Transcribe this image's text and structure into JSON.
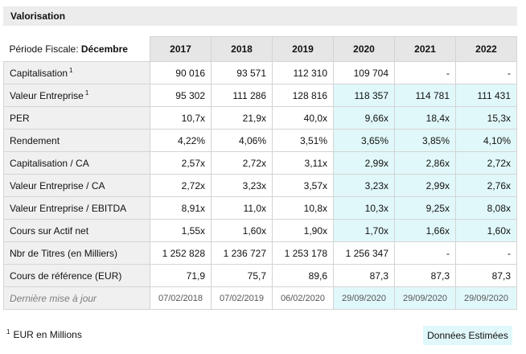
{
  "title": "Valorisation",
  "fiscal_period": {
    "label": "Période Fiscale:",
    "value": "Décembre"
  },
  "years": [
    "2017",
    "2018",
    "2019",
    "2020",
    "2021",
    "2022"
  ],
  "estimated_from_index": 3,
  "rows": [
    {
      "label": "Capitalisation",
      "sup": "1",
      "values": [
        "90 016",
        "93 571",
        "112 310",
        "109 704",
        "-",
        "-"
      ],
      "shade_from": 6
    },
    {
      "label": "Valeur Entreprise",
      "sup": "1",
      "values": [
        "95 302",
        "111 286",
        "128 816",
        "118 357",
        "114 781",
        "111 431"
      ],
      "shade_from": 3
    },
    {
      "label": "PER",
      "sup": "",
      "values": [
        "10,7x",
        "21,9x",
        "40,0x",
        "9,66x",
        "18,4x",
        "15,3x"
      ],
      "shade_from": 3
    },
    {
      "label": "Rendement",
      "sup": "",
      "values": [
        "4,22%",
        "4,06%",
        "3,51%",
        "3,65%",
        "3,85%",
        "4,10%"
      ],
      "shade_from": 3
    },
    {
      "label": "Capitalisation / CA",
      "sup": "",
      "values": [
        "2,57x",
        "2,72x",
        "3,11x",
        "2,99x",
        "2,86x",
        "2,72x"
      ],
      "shade_from": 3
    },
    {
      "label": "Valeur Entreprise / CA",
      "sup": "",
      "values": [
        "2,72x",
        "3,23x",
        "3,57x",
        "3,23x",
        "2,99x",
        "2,76x"
      ],
      "shade_from": 3
    },
    {
      "label": "Valeur Entreprise / EBITDA",
      "sup": "",
      "values": [
        "8,91x",
        "11,0x",
        "10,8x",
        "10,3x",
        "9,25x",
        "8,08x"
      ],
      "shade_from": 3
    },
    {
      "label": "Cours sur Actif net",
      "sup": "",
      "values": [
        "1,55x",
        "1,60x",
        "1,90x",
        "1,70x",
        "1,66x",
        "1,60x"
      ],
      "shade_from": 3
    },
    {
      "label": "Nbr de Titres (en Milliers)",
      "sup": "",
      "values": [
        "1 252 828",
        "1 236 727",
        "1 253 178",
        "1 256 347",
        "-",
        "-"
      ],
      "shade_from": 6
    },
    {
      "label": "Cours de référence (EUR)",
      "sup": "",
      "values": [
        "71,9",
        "75,7",
        "89,6",
        "87,3",
        "87,3",
        "87,3"
      ],
      "shade_from": 6
    }
  ],
  "last_update": {
    "label": "Dernière mise à jour",
    "values": [
      "07/02/2018",
      "07/02/2019",
      "06/02/2020",
      "29/09/2020",
      "29/09/2020",
      "29/09/2020"
    ],
    "shade_from": 3
  },
  "footnote": {
    "sup": "1",
    "text": "EUR en Millions"
  },
  "estimated_label": "Données Estimées",
  "colors": {
    "header_bg": "#ececec",
    "label_bg": "#f0f0f0",
    "year_bg": "#e6e6e6",
    "estimated_bg": "#e1f8fa",
    "border": "#d4d4d4"
  }
}
